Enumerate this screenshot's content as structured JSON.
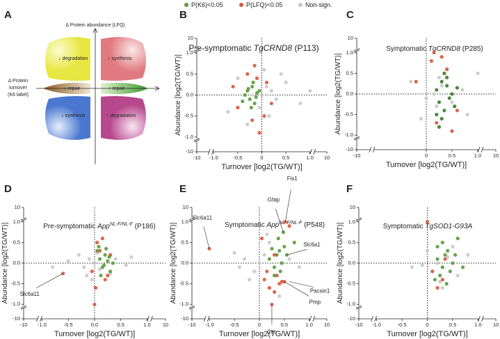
{
  "panel_labels": [
    "A",
    "B",
    "C",
    "D",
    "E",
    "F"
  ],
  "diagram": {
    "y_axis": "Δ Protein abundance (LFQ)",
    "x_axis": [
      "Δ Protein",
      "turnover",
      "(K6 label)"
    ],
    "regions": [
      "↓ degradation",
      "↑ synthesis",
      "↓ repair",
      "↑ repair",
      "↓ synthesis",
      "↑ degradation"
    ]
  },
  "chart_data": [
    {
      "type": "scatter",
      "title": [
        "Pre-symptomatic ",
        "TgCRND8",
        " (P113)"
      ],
      "xlabel": "Turnover [log2(TG/WT)]",
      "ylabel": "Abundance [log2(TG/WT)]",
      "xlim": [
        -10,
        10
      ],
      "ylim": [
        -10,
        10
      ],
      "xbreak": [
        -1,
        1
      ],
      "ybreak": [
        -1,
        1
      ],
      "xticks": [
        -10,
        {
          "value": -1,
          "label": "-1.0"
        },
        -0.5,
        0,
        0.5,
        {
          "value": 1,
          "label": "1.0"
        },
        10
      ],
      "yticks": [
        -10,
        {
          "value": -1,
          "label": "-1.0"
        },
        -0.5,
        {
          "value": 0,
          "label": "0.0"
        },
        0.5,
        {
          "value": 1,
          "label": "1.0"
        },
        10
      ],
      "series": [
        {
          "name": "P(K6)<0.05",
          "color": "#5a9a3a",
          "x": [
            -0.3,
            -0.25,
            -0.2,
            -0.15,
            -0.1,
            -0.35,
            -0.22,
            -0.18,
            -0.12,
            -0.28,
            -0.05,
            -0.4
          ],
          "y": [
            0.1,
            -0.1,
            0.2,
            -0.2,
            0.05,
            0,
            -0.3,
            0.3,
            -0.05,
            0.15,
            0.1,
            -0.15
          ]
        },
        {
          "name": "P(LFQ)<0.05",
          "color": "#d9553a",
          "x": [
            -0.3,
            -0.1,
            0.05,
            -0.5,
            0.1,
            -0.2,
            -0.05,
            -0.6,
            0.2,
            -0.15
          ],
          "y": [
            0.5,
            0.4,
            -0.5,
            -0.3,
            0.3,
            -0.6,
            -0.9,
            0.2,
            -0.2,
            0.7
          ]
        },
        {
          "name": "Non-sign.",
          "color": "#c8c8c8",
          "x": [
            0,
            0.1,
            -0.05,
            0.2,
            0.3,
            0.5,
            -0.5,
            0.8,
            -0.7,
            0.15,
            0.05,
            -0.3,
            0.4,
            1.0
          ],
          "y": [
            0,
            0.2,
            -0.3,
            0.1,
            -0.1,
            0.3,
            0.4,
            -0.2,
            -0.4,
            -0.5,
            0.6,
            -0.7,
            0.5,
            0.1
          ]
        }
      ]
    },
    {
      "type": "scatter",
      "title": [
        "Symptomatic ",
        "TgCRND8",
        " (P285)"
      ],
      "xlabel": "Turnover [log2(TG/WT)]",
      "ylabel": "Abundance [log2(TG/WT)]",
      "xlim": [
        -10,
        10
      ],
      "ylim": [
        -10,
        10
      ],
      "xbreak": [
        -1,
        1
      ],
      "ybreak": [
        -1,
        1
      ],
      "xticks": [
        -10,
        0,
        0.5,
        {
          "value": 1,
          "label": "1.0"
        },
        10
      ],
      "yticks": [
        -10,
        {
          "value": -1,
          "label": "-1.0"
        },
        -0.5,
        {
          "value": 0,
          "label": "0.0"
        },
        0.5,
        {
          "value": 1,
          "label": "1.0"
        },
        10
      ],
      "series": [
        {
          "name": "P(K6)<0.05",
          "color": "#3d7a2a",
          "x": [
            0.2,
            0.25,
            0.3,
            0.35,
            0.4,
            0.45,
            0.5,
            0.3,
            0.35,
            0.55,
            0.25,
            0.4,
            0.2,
            0.6
          ],
          "y": [
            0.1,
            -0.2,
            0.3,
            -0.4,
            0.2,
            -0.1,
            0,
            -0.6,
            0.5,
            -0.3,
            -0.8,
            0.4,
            -0.5,
            0.15
          ]
        },
        {
          "name": "P(LFQ)<0.05",
          "color": "#d9553a",
          "x": [
            0.1,
            0.3,
            -0.2,
            0.2,
            0.5,
            0.4,
            0.15,
            0.6
          ],
          "y": [
            0.8,
            0.9,
            0.3,
            -0.7,
            -0.9,
            0.6,
            1.1,
            -0.4
          ]
        },
        {
          "name": "Non-sign.",
          "color": "#c8c8c8",
          "x": [
            0.15,
            0.3,
            0,
            -0.3,
            0.5,
            0.7,
            1.0,
            0.2,
            0.4,
            -0.1,
            0.25,
            0.8
          ],
          "y": [
            0,
            0.2,
            -0.1,
            0.3,
            -0.2,
            0.1,
            0.5,
            -0.3,
            0.6,
            -0.6,
            0.4,
            -0.5
          ]
        }
      ]
    },
    {
      "type": "scatter",
      "title": [
        "Pre-symptomatic ",
        "App",
        "NL-F/NL-F",
        " (P186)"
      ],
      "xlabel": "Turnover [log2(TG/WT)]",
      "ylabel": "Abundance [log2(TG/WT)]",
      "xlim": [
        -10,
        10
      ],
      "ylim": [
        -10,
        10
      ],
      "xbreak": [
        -1,
        1
      ],
      "ybreak": [
        -1,
        1
      ],
      "xticks": [
        -10,
        {
          "value": -1,
          "label": "-1.0"
        },
        -0.5,
        {
          "value": 0,
          "label": "0.0"
        },
        0.5,
        {
          "value": 1,
          "label": "1.0"
        },
        10
      ],
      "yticks": [
        -10,
        {
          "value": -1,
          "label": "-1.0"
        },
        -0.5,
        {
          "value": 0,
          "label": "0.0"
        },
        0.5,
        {
          "value": 1,
          "label": "1.0"
        },
        10
      ],
      "series": [
        {
          "name": "P(K6)<0.05",
          "color": "#5a9a3a",
          "x": [
            0.1,
            0.15,
            0.2,
            0.25,
            0.3,
            0.05,
            0.12,
            0.22,
            0.35,
            0.18,
            0.08,
            0.28
          ],
          "y": [
            0.1,
            -0.1,
            0.2,
            0.05,
            -0.2,
            0.3,
            -0.3,
            0.35,
            0,
            -0.05,
            0.4,
            0.15
          ]
        },
        {
          "name": "P(LFQ)<0.05",
          "color": "#d9553a",
          "x": [
            0.05,
            0.1,
            -0.05,
            0.2,
            0,
            0.15,
            -0.6,
            0.25,
            0.02,
            0.3
          ],
          "y": [
            0.5,
            0.3,
            -0.2,
            -0.4,
            -1.1,
            0.6,
            -0.25,
            -0.3,
            -0.6,
            0.2
          ]
        },
        {
          "name": "Non-sign.",
          "color": "#c8c8c8",
          "x": [
            0,
            -0.1,
            -0.2,
            -0.3,
            0.1,
            0.4,
            0.6,
            -0.5,
            -0.8,
            0.05,
            -0.15,
            0.7,
            0.3,
            -0.05
          ],
          "y": [
            0,
            0.1,
            -0.1,
            0.2,
            -0.15,
            0.1,
            -0.05,
            0.05,
            -0.1,
            0.25,
            -0.3,
            0.15,
            -0.25,
            -0.4
          ]
        }
      ],
      "annotations": [
        {
          "text": "Slc6a11",
          "x": -0.6,
          "y": -0.25
        }
      ]
    },
    {
      "type": "scatter",
      "title": [
        "Symptomatic ",
        "App",
        "NL-F/NL-F",
        " (P548)"
      ],
      "xlabel": "Turnover [log2(TG/WT)]",
      "ylabel": "Abundance [log2(TG/WT)]",
      "xlim": [
        -10,
        10
      ],
      "ylim": [
        -10,
        10
      ],
      "xbreak": [
        -1,
        1
      ],
      "ybreak": [
        -1,
        1
      ],
      "xticks": [
        -10,
        {
          "value": -1,
          "label": "-1.0"
        },
        -0.5,
        0,
        0.5,
        {
          "value": 1,
          "label": "1.0"
        },
        10
      ],
      "yticks": [
        -10,
        {
          "value": -1,
          "label": "-1.0"
        },
        -0.5,
        {
          "value": 0,
          "label": "0.0"
        },
        0.5,
        {
          "value": 1,
          "label": "1.0"
        },
        10
      ],
      "series": [
        {
          "name": "P(K6)<0.05",
          "color": "#5a9a3a",
          "x": [
            0.2,
            0.3,
            0.35,
            0.4,
            0.45,
            0.5,
            0.3,
            0.25,
            0.38,
            0.55,
            0.7,
            0.42,
            0.48
          ],
          "y": [
            0.1,
            -0.1,
            0.2,
            0.3,
            0,
            0.4,
            -0.3,
            0.35,
            0.6,
            0.2,
            0.5,
            -0.2,
            0.75
          ]
        },
        {
          "name": "P(LFQ)<0.05",
          "color": "#d9553a",
          "x": [
            0.1,
            0.2,
            0.3,
            0.4,
            0.45,
            0.25,
            0.15,
            -1.1,
            0.35,
            0.5,
            0.52,
            0.6,
            0.3,
            0.05
          ],
          "y": [
            -0.4,
            -0.6,
            -0.7,
            -0.5,
            -0.45,
            -1.1,
            -0.2,
            0.35,
            -0.3,
            -0.45,
            1.0,
            0.9,
            0.2,
            0.6
          ]
        },
        {
          "name": "Non-sign.",
          "color": "#c8c8c8",
          "x": [
            0,
            0.1,
            -0.1,
            -0.3,
            -0.5,
            0.2,
            0.6,
            0.8,
            -0.2,
            0.15,
            0.4,
            -0.4
          ],
          "y": [
            0,
            0.2,
            -0.2,
            0.1,
            0.25,
            0.5,
            0.1,
            -0.1,
            -0.4,
            0.7,
            -0.8,
            -0.1
          ]
        }
      ],
      "annotations": [
        {
          "text": "Slc6a11",
          "x": -1.1,
          "y": 0.35
        },
        {
          "text": "Gfap",
          "x": 0.48,
          "y": 0.75
        },
        {
          "text": "Fis1",
          "x": 0.52,
          "y": 1.0
        },
        {
          "text": "Slc6a1",
          "x": 0.55,
          "y": 0.2
        },
        {
          "text": "Pacsin1",
          "x": 0.6,
          "y": -0.45
        },
        {
          "text": "Pmp",
          "x": 0.5,
          "y": -0.45
        },
        {
          "text": "Cltc",
          "x": 0.25,
          "y": -1.1
        }
      ]
    },
    {
      "type": "scatter",
      "title": [
        "Symptomatic ",
        "TgSOD1-G93A"
      ],
      "xlabel": "Turnover [log2(TG/WT)]",
      "ylabel": "Abundance [log2(TG/WT)]",
      "xlim": [
        -10,
        10
      ],
      "ylim": [
        -10,
        10
      ],
      "xbreak": [
        -1,
        1
      ],
      "ybreak": [
        -1,
        1
      ],
      "xticks": [
        -10,
        {
          "value": -1,
          "label": "-1.0"
        },
        -0.5,
        0,
        0.5,
        {
          "value": 1,
          "label": "1.0"
        },
        10
      ],
      "yticks": [
        -10,
        {
          "value": -1,
          "label": "-1.0"
        },
        -0.5,
        {
          "value": 0,
          "label": "0.0"
        },
        0.5,
        {
          "value": 1,
          "label": "1.0"
        },
        10
      ],
      "series": [
        {
          "name": "P(K6)<0.05",
          "color": "#5a9a3a",
          "x": [
            0.2,
            0.3,
            0.35,
            0.4,
            0.25,
            0.5,
            0.3,
            0.45,
            0.6,
            0.2,
            0.38,
            0.55,
            0.7,
            0.15
          ],
          "y": [
            0.1,
            -0.1,
            0.2,
            0.3,
            -0.3,
            0,
            0.5,
            -0.2,
            0.6,
            0.4,
            -0.5,
            0.2,
            -0.1,
            -0.4
          ]
        },
        {
          "name": "P(LFQ)<0.05",
          "color": "#d9553a",
          "x": [
            0,
            0.1,
            0.3,
            0.2,
            0.35
          ],
          "y": [
            1.1,
            -0.2,
            -0.4,
            -0.6,
            0.1
          ]
        },
        {
          "name": "Non-sign.",
          "color": "#c8c8c8",
          "x": [
            0.2,
            0.4,
            0.1,
            0,
            -0.3,
            0.6,
            0.8,
            0.3,
            0.5,
            -0.1,
            0.25
          ],
          "y": [
            0,
            0.15,
            -0.2,
            0.3,
            -0.1,
            -0.3,
            0.2,
            -0.6,
            0.4,
            -0.05,
            -0.45
          ]
        }
      ]
    }
  ]
}
